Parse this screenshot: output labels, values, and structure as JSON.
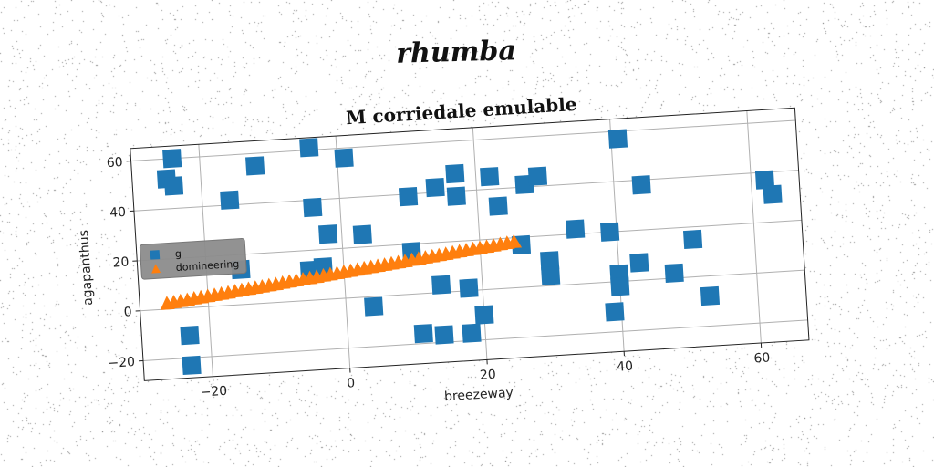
{
  "suptitle": "rhumba",
  "chart_data": {
    "type": "scatter",
    "title": "M corriedale emulable",
    "xlabel": "breezeway",
    "ylabel": "agapanthus",
    "xlim": [
      -30,
      67
    ],
    "ylim": [
      -28,
      65
    ],
    "xticks": [
      -20,
      0,
      20,
      40,
      60
    ],
    "yticks": [
      -20,
      0,
      20,
      40,
      60
    ],
    "xtick_labels": [
      "−20",
      "0",
      "20",
      "40",
      "60"
    ],
    "ytick_labels": [
      "−20",
      "0",
      "20",
      "40",
      "60"
    ],
    "grid": true,
    "legend_position": "center-left",
    "series": [
      {
        "name": "g",
        "marker": "square",
        "color": "#1f77b4",
        "points": [
          [
            -24,
            60
          ],
          [
            -25,
            52
          ],
          [
            -24,
            49
          ],
          [
            -16,
            42
          ],
          [
            -12,
            55
          ],
          [
            -4,
            61
          ],
          [
            1,
            56
          ],
          [
            -4,
            37
          ],
          [
            -2,
            26
          ],
          [
            3,
            25
          ],
          [
            -15,
            14
          ],
          [
            -5,
            12
          ],
          [
            -3,
            13
          ],
          [
            4,
            -4
          ],
          [
            -23,
            -11
          ],
          [
            -23,
            -23
          ],
          [
            10,
            39
          ],
          [
            14,
            42
          ],
          [
            17,
            47
          ],
          [
            17,
            38
          ],
          [
            22,
            45
          ],
          [
            23,
            33
          ],
          [
            27,
            41
          ],
          [
            29,
            44
          ],
          [
            10,
            17
          ],
          [
            14,
            3
          ],
          [
            18,
            1
          ],
          [
            20,
            -10
          ],
          [
            11,
            -16
          ],
          [
            14,
            -17
          ],
          [
            18,
            -17
          ],
          [
            26,
            17
          ],
          [
            30,
            10
          ],
          [
            30,
            4
          ],
          [
            34,
            22
          ],
          [
            39,
            20
          ],
          [
            41,
            57
          ],
          [
            44,
            38
          ],
          [
            40,
            3
          ],
          [
            40,
            -2
          ],
          [
            43,
            7
          ],
          [
            39,
            -12
          ],
          [
            48,
            2
          ],
          [
            51,
            15
          ],
          [
            53,
            -8
          ],
          [
            62,
            37
          ],
          [
            63,
            31
          ]
        ]
      },
      {
        "name": "domineering",
        "marker": "triangle",
        "color": "#ff7f0e",
        "x": [
          -26,
          -25,
          -24,
          -23,
          -22,
          -21,
          -20,
          -19,
          -18,
          -17,
          -16,
          -15,
          -14,
          -13,
          -12,
          -11,
          -10,
          -9,
          -8,
          -7,
          -6,
          -5,
          -4,
          -3,
          -2,
          -1,
          0,
          1,
          2,
          3,
          4,
          5,
          6,
          7,
          8,
          9,
          10,
          11,
          12,
          13,
          14,
          15,
          16,
          17,
          18,
          19,
          20,
          21,
          22,
          23,
          24,
          25
        ],
        "y": [
          2.0,
          2.3,
          2.6,
          2.9,
          3.3,
          3.6,
          3.9,
          4.2,
          4.5,
          4.8,
          5.2,
          5.5,
          5.8,
          6.1,
          6.4,
          6.7,
          7.0,
          7.4,
          7.7,
          8.0,
          8.3,
          8.6,
          8.9,
          9.3,
          9.6,
          9.9,
          10.2,
          10.5,
          10.8,
          11.2,
          11.5,
          11.8,
          12.1,
          12.4,
          12.7,
          13.0,
          13.4,
          13.7,
          14.0,
          14.3,
          14.6,
          14.9,
          15.3,
          15.6,
          15.9,
          16.2,
          16.5,
          16.8,
          17.1,
          17.5,
          17.8,
          18.1
        ]
      }
    ]
  }
}
